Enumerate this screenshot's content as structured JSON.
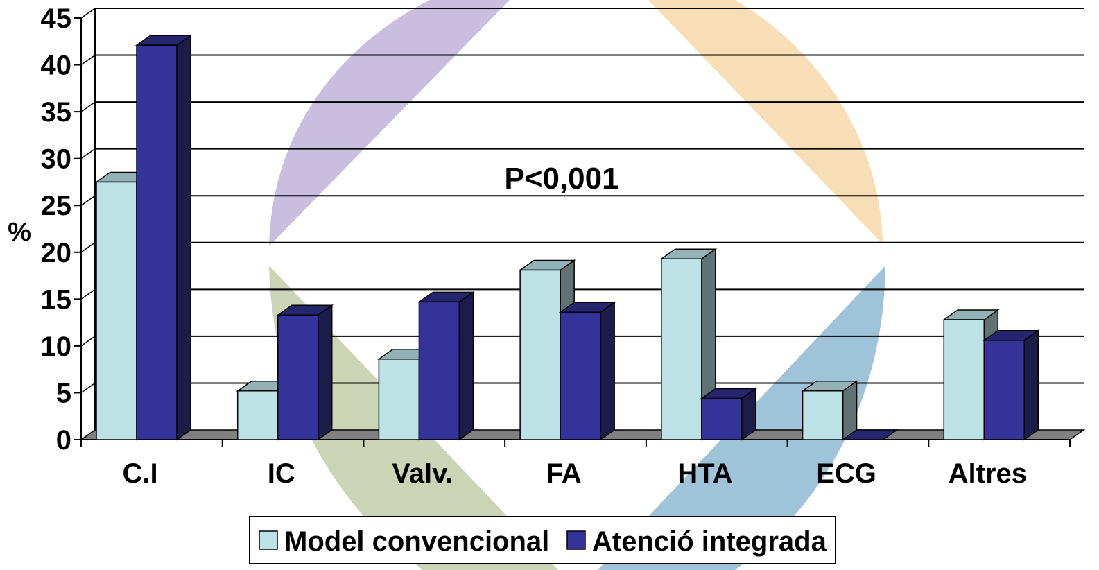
{
  "chart_data": {
    "type": "bar",
    "categories": [
      "C.I",
      "IC",
      "Valv.",
      "FA",
      "HTA",
      "ECG",
      "Altres"
    ],
    "series": [
      {
        "name": "Model convencional",
        "values": [
          27.5,
          5.2,
          8.6,
          18.1,
          19.3,
          5.2,
          12.8
        ],
        "color": "#bce2e6",
        "top_color": "#93b2b6",
        "side_color": "#5f7375"
      },
      {
        "name": "Atenció integrada",
        "values": [
          42.1,
          13.3,
          14.7,
          13.6,
          4.4,
          0,
          10.6
        ],
        "color": "#333399",
        "top_color": "#26266f",
        "side_color": "#1c1c4a"
      }
    ],
    "ylabel": "%",
    "xlabel": "",
    "ylim": [
      0,
      45
    ],
    "yticks": [
      0,
      5,
      10,
      15,
      20,
      25,
      30,
      35,
      40,
      45
    ],
    "grid": true,
    "legend_position": "bottom",
    "annotation": "P<0,001",
    "colors": {
      "grid": "#000000",
      "floor": "#808080",
      "background_purple": "#c9bedf",
      "background_orange": "#f8deb4",
      "background_green": "#cbd4b4",
      "background_blue": "#9fc4da"
    }
  }
}
